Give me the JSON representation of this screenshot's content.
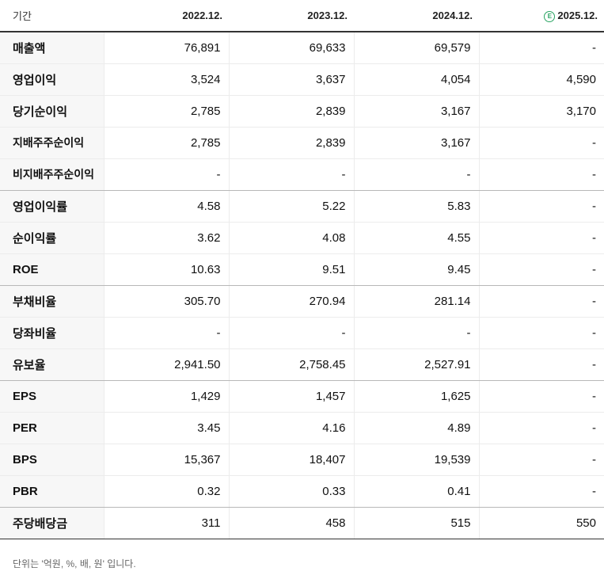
{
  "table": {
    "period_label": "기간",
    "columns": [
      "2022.12.",
      "2023.12.",
      "2024.12.",
      "2025.12."
    ],
    "estimate_badge": "E",
    "rows": [
      {
        "label": "매출액",
        "values": [
          "76,891",
          "69,633",
          "69,579",
          "-"
        ]
      },
      {
        "label": "영업이익",
        "values": [
          "3,524",
          "3,637",
          "4,054",
          "4,590"
        ]
      },
      {
        "label": "당기순이익",
        "values": [
          "2,785",
          "2,839",
          "3,167",
          "3,170"
        ]
      },
      {
        "label": "지배주주순이익",
        "values": [
          "2,785",
          "2,839",
          "3,167",
          "-"
        ]
      },
      {
        "label": "비지배주주순이익",
        "values": [
          "-",
          "-",
          "-",
          "-"
        ]
      },
      {
        "label": "영업이익률",
        "values": [
          "4.58",
          "5.22",
          "5.83",
          "-"
        ]
      },
      {
        "label": "순이익률",
        "values": [
          "3.62",
          "4.08",
          "4.55",
          "-"
        ]
      },
      {
        "label": "ROE",
        "values": [
          "10.63",
          "9.51",
          "9.45",
          "-"
        ]
      },
      {
        "label": "부채비율",
        "values": [
          "305.70",
          "270.94",
          "281.14",
          "-"
        ]
      },
      {
        "label": "당좌비율",
        "values": [
          "-",
          "-",
          "-",
          "-"
        ]
      },
      {
        "label": "유보율",
        "values": [
          "2,941.50",
          "2,758.45",
          "2,527.91",
          "-"
        ]
      },
      {
        "label": "EPS",
        "values": [
          "1,429",
          "1,457",
          "1,625",
          "-"
        ]
      },
      {
        "label": "PER",
        "values": [
          "3.45",
          "4.16",
          "4.89",
          "-"
        ]
      },
      {
        "label": "BPS",
        "values": [
          "15,367",
          "18,407",
          "19,539",
          "-"
        ]
      },
      {
        "label": "PBR",
        "values": [
          "0.32",
          "0.33",
          "0.41",
          "-"
        ]
      },
      {
        "label": "주당배당금",
        "values": [
          "311",
          "458",
          "515",
          "550"
        ]
      }
    ]
  },
  "footer": {
    "unit_note": "단위는 '억원, %, 배, 원' 입니다."
  },
  "colors": {
    "estimate_accent": "#2aa463",
    "label_background": "#f7f7f7"
  }
}
